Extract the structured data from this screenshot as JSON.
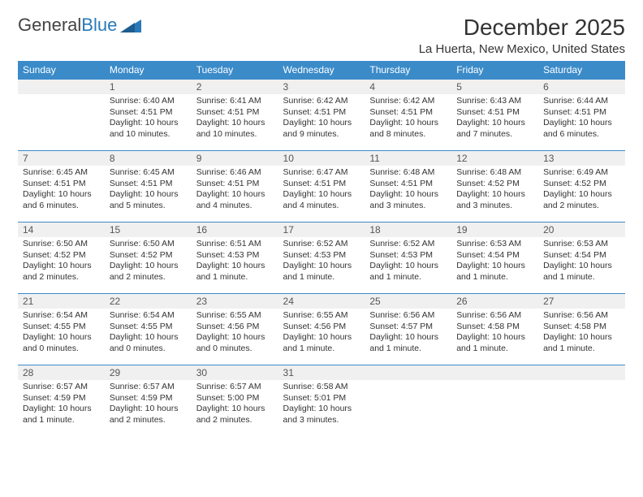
{
  "brand": {
    "part1": "General",
    "part2": "Blue"
  },
  "title": "December 2025",
  "location": "La Huerta, New Mexico, United States",
  "colors": {
    "header_bg": "#3b8bc9",
    "header_text": "#ffffff",
    "daynum_bg": "#f0f0f0",
    "row_border": "#3b8bc9",
    "brand_blue": "#2a7ab9",
    "brand_gray": "#666666",
    "page_bg": "#ffffff"
  },
  "weekdays": [
    "Sunday",
    "Monday",
    "Tuesday",
    "Wednesday",
    "Thursday",
    "Friday",
    "Saturday"
  ],
  "weeks": [
    [
      null,
      {
        "n": "1",
        "sr": "6:40 AM",
        "ss": "4:51 PM",
        "dl": "10 hours and 10 minutes."
      },
      {
        "n": "2",
        "sr": "6:41 AM",
        "ss": "4:51 PM",
        "dl": "10 hours and 10 minutes."
      },
      {
        "n": "3",
        "sr": "6:42 AM",
        "ss": "4:51 PM",
        "dl": "10 hours and 9 minutes."
      },
      {
        "n": "4",
        "sr": "6:42 AM",
        "ss": "4:51 PM",
        "dl": "10 hours and 8 minutes."
      },
      {
        "n": "5",
        "sr": "6:43 AM",
        "ss": "4:51 PM",
        "dl": "10 hours and 7 minutes."
      },
      {
        "n": "6",
        "sr": "6:44 AM",
        "ss": "4:51 PM",
        "dl": "10 hours and 6 minutes."
      }
    ],
    [
      {
        "n": "7",
        "sr": "6:45 AM",
        "ss": "4:51 PM",
        "dl": "10 hours and 6 minutes."
      },
      {
        "n": "8",
        "sr": "6:45 AM",
        "ss": "4:51 PM",
        "dl": "10 hours and 5 minutes."
      },
      {
        "n": "9",
        "sr": "6:46 AM",
        "ss": "4:51 PM",
        "dl": "10 hours and 4 minutes."
      },
      {
        "n": "10",
        "sr": "6:47 AM",
        "ss": "4:51 PM",
        "dl": "10 hours and 4 minutes."
      },
      {
        "n": "11",
        "sr": "6:48 AM",
        "ss": "4:51 PM",
        "dl": "10 hours and 3 minutes."
      },
      {
        "n": "12",
        "sr": "6:48 AM",
        "ss": "4:52 PM",
        "dl": "10 hours and 3 minutes."
      },
      {
        "n": "13",
        "sr": "6:49 AM",
        "ss": "4:52 PM",
        "dl": "10 hours and 2 minutes."
      }
    ],
    [
      {
        "n": "14",
        "sr": "6:50 AM",
        "ss": "4:52 PM",
        "dl": "10 hours and 2 minutes."
      },
      {
        "n": "15",
        "sr": "6:50 AM",
        "ss": "4:52 PM",
        "dl": "10 hours and 2 minutes."
      },
      {
        "n": "16",
        "sr": "6:51 AM",
        "ss": "4:53 PM",
        "dl": "10 hours and 1 minute."
      },
      {
        "n": "17",
        "sr": "6:52 AM",
        "ss": "4:53 PM",
        "dl": "10 hours and 1 minute."
      },
      {
        "n": "18",
        "sr": "6:52 AM",
        "ss": "4:53 PM",
        "dl": "10 hours and 1 minute."
      },
      {
        "n": "19",
        "sr": "6:53 AM",
        "ss": "4:54 PM",
        "dl": "10 hours and 1 minute."
      },
      {
        "n": "20",
        "sr": "6:53 AM",
        "ss": "4:54 PM",
        "dl": "10 hours and 1 minute."
      }
    ],
    [
      {
        "n": "21",
        "sr": "6:54 AM",
        "ss": "4:55 PM",
        "dl": "10 hours and 0 minutes."
      },
      {
        "n": "22",
        "sr": "6:54 AM",
        "ss": "4:55 PM",
        "dl": "10 hours and 0 minutes."
      },
      {
        "n": "23",
        "sr": "6:55 AM",
        "ss": "4:56 PM",
        "dl": "10 hours and 0 minutes."
      },
      {
        "n": "24",
        "sr": "6:55 AM",
        "ss": "4:56 PM",
        "dl": "10 hours and 1 minute."
      },
      {
        "n": "25",
        "sr": "6:56 AM",
        "ss": "4:57 PM",
        "dl": "10 hours and 1 minute."
      },
      {
        "n": "26",
        "sr": "6:56 AM",
        "ss": "4:58 PM",
        "dl": "10 hours and 1 minute."
      },
      {
        "n": "27",
        "sr": "6:56 AM",
        "ss": "4:58 PM",
        "dl": "10 hours and 1 minute."
      }
    ],
    [
      {
        "n": "28",
        "sr": "6:57 AM",
        "ss": "4:59 PM",
        "dl": "10 hours and 1 minute."
      },
      {
        "n": "29",
        "sr": "6:57 AM",
        "ss": "4:59 PM",
        "dl": "10 hours and 2 minutes."
      },
      {
        "n": "30",
        "sr": "6:57 AM",
        "ss": "5:00 PM",
        "dl": "10 hours and 2 minutes."
      },
      {
        "n": "31",
        "sr": "6:58 AM",
        "ss": "5:01 PM",
        "dl": "10 hours and 3 minutes."
      },
      null,
      null,
      null
    ]
  ],
  "labels": {
    "sunrise": "Sunrise:",
    "sunset": "Sunset:",
    "daylight": "Daylight:"
  }
}
